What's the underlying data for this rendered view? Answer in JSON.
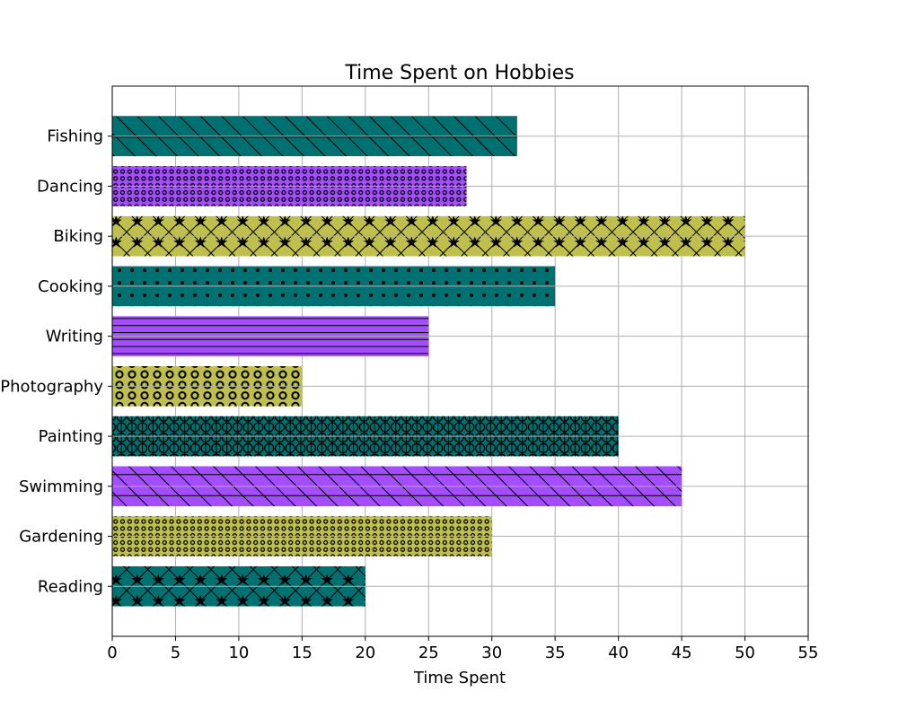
{
  "chart_data": {
    "type": "bar",
    "orientation": "horizontal",
    "title": "Time Spent on Hobbies",
    "xlabel": "Time Spent",
    "ylabel": "",
    "xlim": [
      0,
      55
    ],
    "xticks": [
      0,
      5,
      10,
      15,
      20,
      25,
      30,
      35,
      40,
      45,
      50,
      55
    ],
    "grid": true,
    "categories": [
      "Reading",
      "Gardening",
      "Swimming",
      "Painting",
      "Photography",
      "Writing",
      "Cooking",
      "Biking",
      "Dancing",
      "Fishing"
    ],
    "values": [
      20,
      30,
      45,
      40,
      15,
      25,
      35,
      50,
      28,
      32
    ],
    "bar_colors": [
      "#007070",
      "#bfbf4d",
      "#a34dff",
      "#007070",
      "#bfbf4d",
      "#a34dff",
      "#007070",
      "#bfbf4d",
      "#a34dff",
      "#007070"
    ],
    "hatches": [
      "star-cross",
      "small-circles",
      "backslash-horizontal",
      "big-circles-vertical",
      "rings",
      "horizontal",
      "dots",
      "star-cross",
      "small-circles",
      "backslash-horizontal"
    ]
  }
}
